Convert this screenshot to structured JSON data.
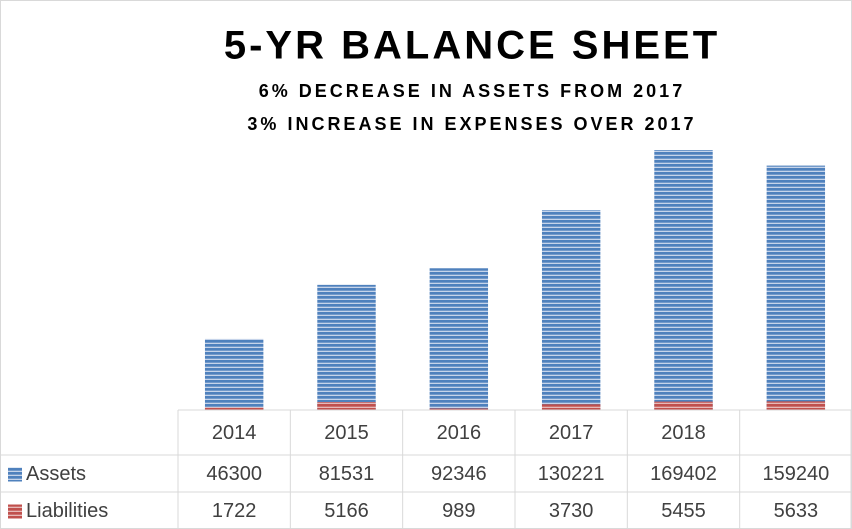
{
  "chart_data": {
    "type": "bar",
    "title": "5-YR BALANCE SHEET",
    "subtitle": [
      "6% DECREASE IN ASSETS FROM 2017",
      "3% INCREASE IN EXPENSES OVER 2017"
    ],
    "categories": [
      "2014",
      "2015",
      "2016",
      "2017",
      "2018",
      null
    ],
    "series": [
      {
        "name": "Assets",
        "color": "#4f81bd",
        "values": [
          46300,
          81531,
          92346,
          130221,
          169402,
          159240
        ]
      },
      {
        "name": "Liabilities",
        "color": "#c0504d",
        "values": [
          1722,
          5166,
          989,
          3730,
          5455,
          5633
        ]
      }
    ],
    "overlap": true
  }
}
